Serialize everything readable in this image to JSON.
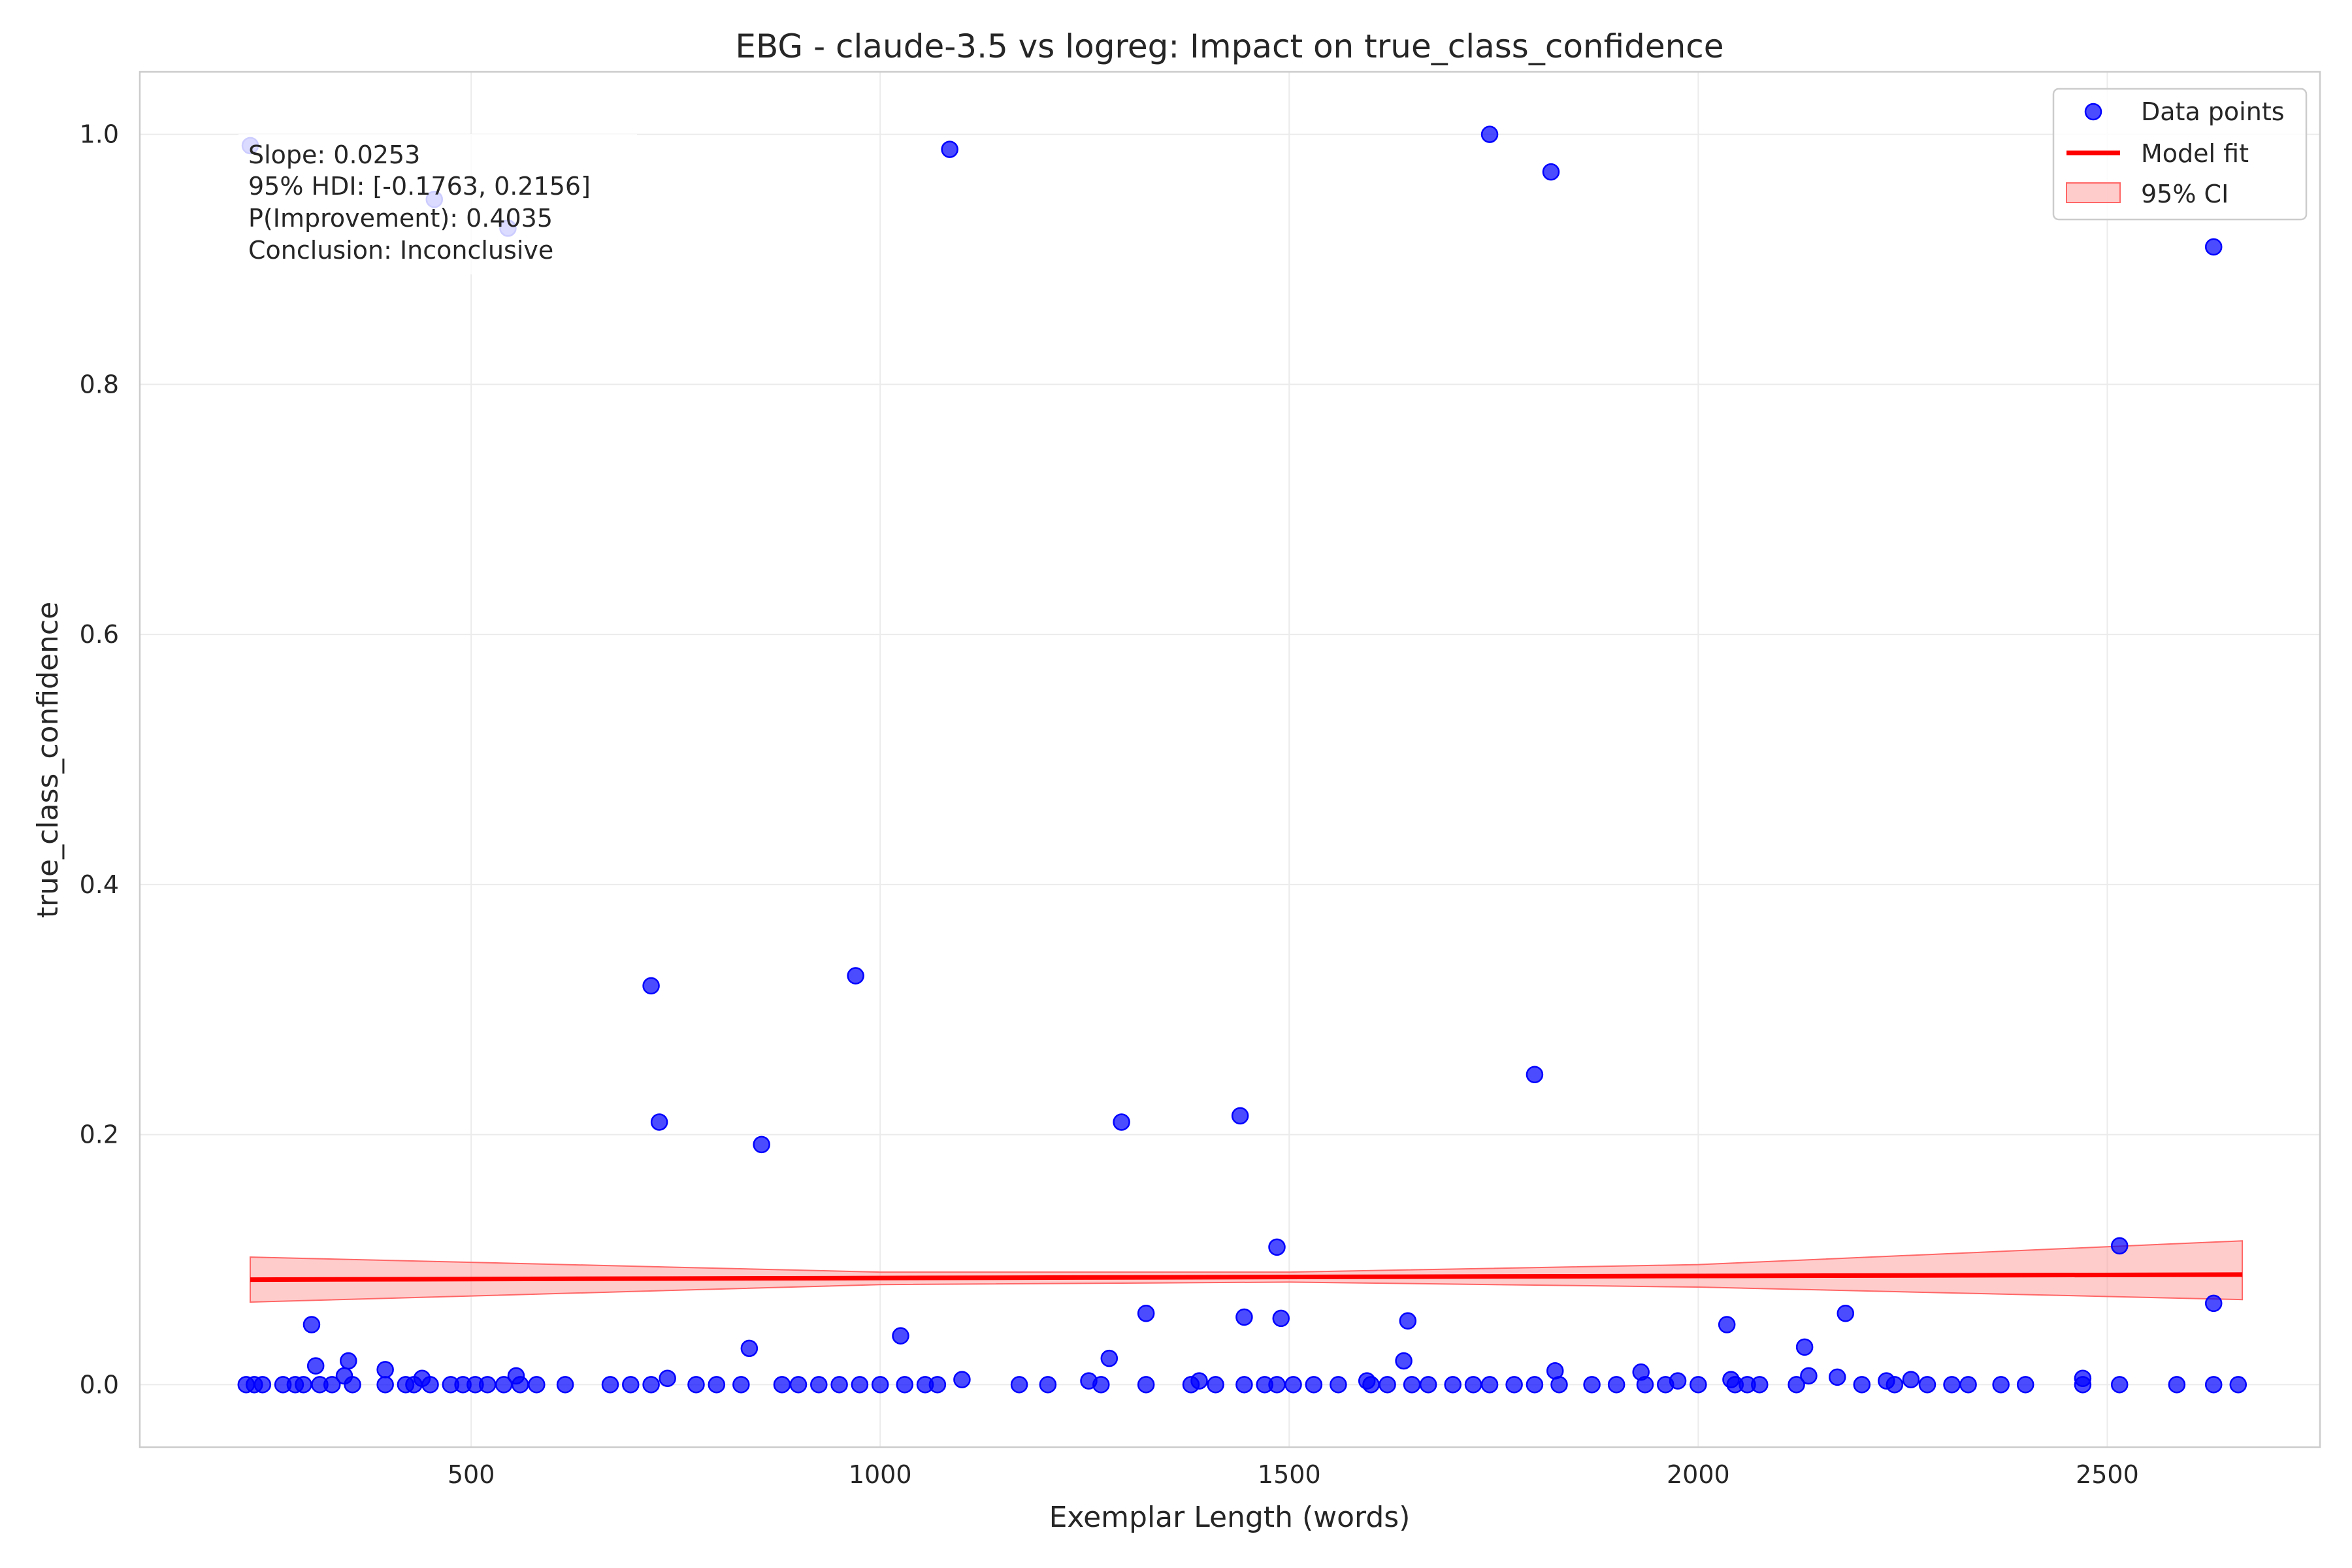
{
  "chart_data": {
    "type": "scatter",
    "title": "EBG - claude-3.5 vs logreg: Impact on true_class_confidence",
    "xlabel": "Exemplar Length (words)",
    "ylabel": "true_class_confidence",
    "xlim": [
      95,
      2760
    ],
    "ylim": [
      -0.05,
      1.05
    ],
    "xticks": [
      500,
      1000,
      1500,
      2000,
      2500
    ],
    "yticks": [
      0.0,
      0.2,
      0.4,
      0.6,
      0.8,
      1.0
    ],
    "xtick_labels": [
      "500",
      "1000",
      "1500",
      "2000",
      "2500"
    ],
    "ytick_labels": [
      "0.0",
      "0.2",
      "0.4",
      "0.6",
      "0.8",
      "1.0"
    ],
    "grid": true,
    "legend_position": "top-right",
    "legend": [
      "Data points",
      "Model fit",
      "95% CI"
    ],
    "annotation": [
      "Slope: 0.0253",
      "95% HDI: [-0.1763, 0.2156]",
      "P(Improvement): 0.4035",
      "Conclusion: Inconclusive"
    ],
    "colors": {
      "points": "#0000ff",
      "fit": "#ff0000",
      "ci": "#ff9999"
    },
    "model_fit": {
      "x": [
        230,
        2665
      ],
      "y": [
        0.084,
        0.088
      ]
    },
    "ci_band": {
      "x": [
        230,
        1000,
        1500,
        2000,
        2665
      ],
      "lower": [
        0.066,
        0.08,
        0.082,
        0.078,
        0.068
      ],
      "upper": [
        0.102,
        0.09,
        0.09,
        0.096,
        0.115
      ]
    },
    "points": [
      [
        230,
        0.991
      ],
      [
        455,
        0.948
      ],
      [
        545,
        0.925
      ],
      [
        1085,
        0.988
      ],
      [
        1745,
        1.0
      ],
      [
        1820,
        0.97
      ],
      [
        2630,
        0.91
      ],
      [
        720,
        0.319
      ],
      [
        970,
        0.327
      ],
      [
        730,
        0.21
      ],
      [
        855,
        0.192
      ],
      [
        1295,
        0.21
      ],
      [
        1440,
        0.215
      ],
      [
        1800,
        0.248
      ],
      [
        1485,
        0.11
      ],
      [
        2515,
        0.111
      ],
      [
        2630,
        0.065
      ],
      [
        305,
        0.048
      ],
      [
        2035,
        0.048
      ],
      [
        1025,
        0.039
      ],
      [
        1325,
        0.057
      ],
      [
        1445,
        0.054
      ],
      [
        1490,
        0.053
      ],
      [
        1645,
        0.051
      ],
      [
        2180,
        0.057
      ],
      [
        840,
        0.029
      ],
      [
        2130,
        0.03
      ],
      [
        1280,
        0.021
      ],
      [
        1640,
        0.019
      ],
      [
        350,
        0.019
      ],
      [
        310,
        0.015
      ],
      [
        395,
        0.012
      ],
      [
        1825,
        0.011
      ],
      [
        1930,
        0.01
      ],
      [
        345,
        0.007
      ],
      [
        555,
        0.007
      ],
      [
        2135,
        0.007
      ],
      [
        2170,
        0.006
      ],
      [
        2470,
        0.005
      ],
      [
        440,
        0.005
      ],
      [
        740,
        0.005
      ],
      [
        1100,
        0.004
      ],
      [
        2040,
        0.004
      ],
      [
        2260,
        0.004
      ],
      [
        1255,
        0.003
      ],
      [
        1390,
        0.003
      ],
      [
        1595,
        0.003
      ],
      [
        1975,
        0.003
      ],
      [
        2230,
        0.003
      ],
      [
        225,
        0.0
      ],
      [
        235,
        0.0
      ],
      [
        245,
        0.0
      ],
      [
        270,
        0.0
      ],
      [
        285,
        0.0
      ],
      [
        295,
        0.0
      ],
      [
        315,
        0.0
      ],
      [
        330,
        0.0
      ],
      [
        355,
        0.0
      ],
      [
        395,
        0.0
      ],
      [
        420,
        0.0
      ],
      [
        430,
        0.0
      ],
      [
        450,
        0.0
      ],
      [
        475,
        0.0
      ],
      [
        490,
        0.0
      ],
      [
        505,
        0.0
      ],
      [
        520,
        0.0
      ],
      [
        540,
        0.0
      ],
      [
        560,
        0.0
      ],
      [
        580,
        0.0
      ],
      [
        615,
        0.0
      ],
      [
        670,
        0.0
      ],
      [
        695,
        0.0
      ],
      [
        720,
        0.0
      ],
      [
        775,
        0.0
      ],
      [
        800,
        0.0
      ],
      [
        830,
        0.0
      ],
      [
        880,
        0.0
      ],
      [
        900,
        0.0
      ],
      [
        925,
        0.0
      ],
      [
        950,
        0.0
      ],
      [
        975,
        0.0
      ],
      [
        1000,
        0.0
      ],
      [
        1030,
        0.0
      ],
      [
        1055,
        0.0
      ],
      [
        1070,
        0.0
      ],
      [
        1170,
        0.0
      ],
      [
        1205,
        0.0
      ],
      [
        1270,
        0.0
      ],
      [
        1325,
        0.0
      ],
      [
        1380,
        0.0
      ],
      [
        1410,
        0.0
      ],
      [
        1445,
        0.0
      ],
      [
        1470,
        0.0
      ],
      [
        1485,
        0.0
      ],
      [
        1505,
        0.0
      ],
      [
        1530,
        0.0
      ],
      [
        1560,
        0.0
      ],
      [
        1600,
        0.0
      ],
      [
        1620,
        0.0
      ],
      [
        1650,
        0.0
      ],
      [
        1670,
        0.0
      ],
      [
        1700,
        0.0
      ],
      [
        1725,
        0.0
      ],
      [
        1745,
        0.0
      ],
      [
        1775,
        0.0
      ],
      [
        1800,
        0.0
      ],
      [
        1830,
        0.0
      ],
      [
        1870,
        0.0
      ],
      [
        1900,
        0.0
      ],
      [
        1935,
        0.0
      ],
      [
        1960,
        0.0
      ],
      [
        2000,
        0.0
      ],
      [
        2045,
        0.0
      ],
      [
        2060,
        0.0
      ],
      [
        2075,
        0.0
      ],
      [
        2120,
        0.0
      ],
      [
        2200,
        0.0
      ],
      [
        2240,
        0.0
      ],
      [
        2280,
        0.0
      ],
      [
        2310,
        0.0
      ],
      [
        2330,
        0.0
      ],
      [
        2370,
        0.0
      ],
      [
        2400,
        0.0
      ],
      [
        2470,
        0.0
      ],
      [
        2515,
        0.0
      ],
      [
        2585,
        0.0
      ],
      [
        2630,
        0.0
      ],
      [
        2660,
        0.0
      ]
    ]
  }
}
